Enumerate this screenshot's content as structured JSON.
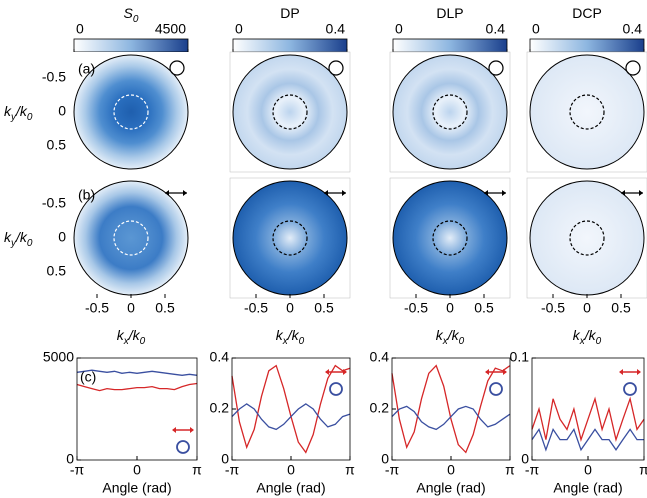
{
  "columns": [
    {
      "title": [
        "S",
        "0"
      ],
      "colorbar_ticks": [
        0,
        4500
      ]
    },
    {
      "title": [
        "DP"
      ],
      "colorbar_ticks": [
        0,
        0.4
      ]
    },
    {
      "title": [
        "DLP"
      ],
      "colorbar_ticks": [
        0,
        0.4
      ]
    },
    {
      "title": [
        "DCP"
      ],
      "colorbar_ticks": [
        0,
        0.4
      ]
    }
  ],
  "y_axis_label": [
    "k",
    "y",
    "/k",
    "0"
  ],
  "x_axis_label": [
    "k",
    "x",
    "/k",
    "0"
  ],
  "map_ticks": [
    -0.5,
    0,
    0.5
  ],
  "panel_labels": [
    "(a)",
    "(b)",
    "(c)"
  ],
  "chart_data": [
    {
      "type": "line",
      "xlabel": "Angle (rad)",
      "x": [
        -3.14,
        -2.75,
        -2.36,
        -1.96,
        -1.57,
        -1.18,
        -0.79,
        -0.39,
        0,
        0.39,
        0.79,
        1.18,
        1.57,
        1.96,
        2.36,
        2.75,
        3.14
      ],
      "xlim": [
        -3.1416,
        3.1416
      ],
      "xticks": [
        {
          "value": -3.1416,
          "label": "-π"
        },
        0,
        {
          "value": 3.1416,
          "label": "π"
        }
      ],
      "ylim": [
        0,
        5000
      ],
      "yticks": [
        0,
        5000
      ],
      "series": [
        {
          "color": "#d62728",
          "values": [
            3700,
            3600,
            3500,
            3400,
            3500,
            3450,
            3450,
            3500,
            3550,
            3550,
            3600,
            3500,
            3500,
            3450,
            3600,
            3700,
            3750
          ]
        },
        {
          "color": "#3a4fa0",
          "values": [
            4300,
            4350,
            4400,
            4350,
            4300,
            4350,
            4250,
            4300,
            4250,
            4300,
            4350,
            4300,
            4250,
            4200,
            4150,
            4200,
            4150
          ]
        }
      ]
    },
    {
      "type": "line",
      "xlabel": "Angle (rad)",
      "x": [
        -3.14,
        -2.75,
        -2.36,
        -1.96,
        -1.57,
        -1.18,
        -0.79,
        -0.39,
        0,
        0.39,
        0.79,
        1.18,
        1.57,
        1.96,
        2.36,
        2.75,
        3.14
      ],
      "xlim": [
        -3.1416,
        3.1416
      ],
      "xticks": [
        {
          "value": -3.1416,
          "label": "-π"
        },
        0,
        {
          "value": 3.1416,
          "label": "π"
        }
      ],
      "ylim": [
        0,
        0.4
      ],
      "yticks": [
        0,
        0.2,
        0.4
      ],
      "series": [
        {
          "color": "#d62728",
          "values": [
            0.33,
            0.15,
            0.05,
            0.12,
            0.25,
            0.35,
            0.37,
            0.28,
            0.17,
            0.07,
            0.03,
            0.1,
            0.22,
            0.32,
            0.37,
            0.35,
            0.36
          ]
        },
        {
          "color": "#3a4fa0",
          "values": [
            0.17,
            0.2,
            0.22,
            0.2,
            0.16,
            0.13,
            0.12,
            0.14,
            0.17,
            0.2,
            0.22,
            0.2,
            0.16,
            0.13,
            0.14,
            0.17,
            0.18
          ]
        }
      ]
    },
    {
      "type": "line",
      "xlabel": "Angle (rad)",
      "x": [
        -3.14,
        -2.75,
        -2.36,
        -1.96,
        -1.57,
        -1.18,
        -0.79,
        -0.39,
        0,
        0.39,
        0.79,
        1.18,
        1.57,
        1.96,
        2.36,
        2.75,
        3.14
      ],
      "xlim": [
        -3.1416,
        3.1416
      ],
      "xticks": [
        {
          "value": -3.1416,
          "label": "-π"
        },
        0,
        {
          "value": 3.1416,
          "label": "π"
        }
      ],
      "ylim": [
        0,
        0.4
      ],
      "yticks": [
        0,
        0.2,
        0.4
      ],
      "series": [
        {
          "color": "#d62728",
          "values": [
            0.34,
            0.16,
            0.05,
            0.11,
            0.24,
            0.34,
            0.37,
            0.29,
            0.16,
            0.06,
            0.03,
            0.1,
            0.21,
            0.31,
            0.36,
            0.35,
            0.37
          ]
        },
        {
          "color": "#3a4fa0",
          "values": [
            0.17,
            0.2,
            0.21,
            0.19,
            0.15,
            0.13,
            0.12,
            0.14,
            0.17,
            0.2,
            0.21,
            0.2,
            0.16,
            0.13,
            0.14,
            0.16,
            0.18
          ]
        }
      ]
    },
    {
      "type": "line",
      "xlabel": "Angle (rad)",
      "x": [
        -3.14,
        -2.75,
        -2.36,
        -1.96,
        -1.57,
        -1.18,
        -0.79,
        -0.39,
        0,
        0.39,
        0.79,
        1.18,
        1.57,
        1.96,
        2.36,
        2.75,
        3.14
      ],
      "xlim": [
        -3.1416,
        3.1416
      ],
      "xticks": [
        {
          "value": -3.1416,
          "label": "-π"
        },
        0,
        {
          "value": 3.1416,
          "label": "π"
        }
      ],
      "ylim": [
        0,
        0.1
      ],
      "yticks": [
        0,
        0.1
      ],
      "series": [
        {
          "color": "#d62728",
          "values": [
            0.03,
            0.05,
            0.02,
            0.06,
            0.04,
            0.03,
            0.05,
            0.02,
            0.04,
            0.06,
            0.03,
            0.05,
            0.02,
            0.04,
            0.06,
            0.03,
            0.04
          ]
        },
        {
          "color": "#3a4fa0",
          "values": [
            0.02,
            0.03,
            0.01,
            0.03,
            0.02,
            0.02,
            0.03,
            0.01,
            0.02,
            0.03,
            0.02,
            0.02,
            0.01,
            0.02,
            0.03,
            0.02,
            0.02
          ]
        }
      ]
    }
  ]
}
